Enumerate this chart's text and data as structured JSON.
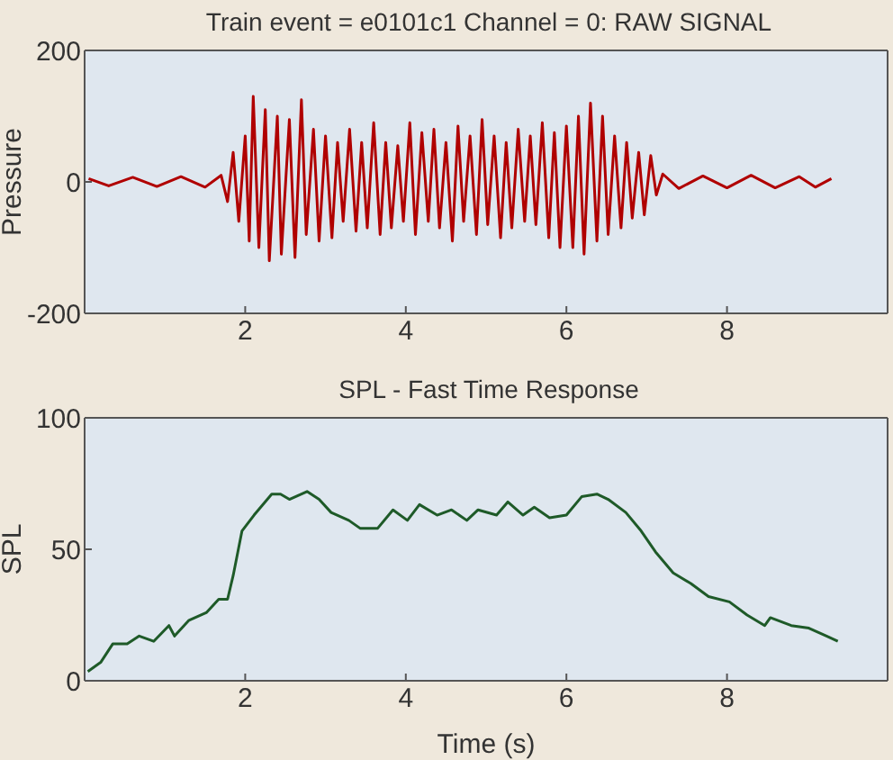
{
  "chart_data": [
    {
      "type": "line",
      "title": "Train event = e0101c1  Channel = 0: RAW SIGNAL",
      "ylabel": "Pressure",
      "xlim": [
        0,
        10
      ],
      "xticks": [
        2,
        4,
        6,
        8
      ],
      "ylim": [
        -200,
        200
      ],
      "yticks": [
        -200,
        0,
        200
      ],
      "series": [
        {
          "color": "#b00000",
          "x": [
            0.05,
            0.3,
            0.6,
            0.9,
            1.2,
            1.5,
            1.7,
            1.78,
            1.85,
            1.92,
            2.0,
            2.05,
            2.1,
            2.17,
            2.25,
            2.3,
            2.4,
            2.45,
            2.55,
            2.62,
            2.7,
            2.76,
            2.85,
            2.92,
            3.0,
            3.08,
            3.15,
            3.22,
            3.3,
            3.38,
            3.45,
            3.52,
            3.6,
            3.68,
            3.75,
            3.82,
            3.9,
            3.97,
            4.05,
            4.12,
            4.2,
            4.28,
            4.35,
            4.42,
            4.5,
            4.58,
            4.65,
            4.72,
            4.8,
            4.88,
            4.95,
            5.02,
            5.1,
            5.18,
            5.25,
            5.32,
            5.4,
            5.48,
            5.55,
            5.62,
            5.7,
            5.78,
            5.85,
            5.92,
            6.0,
            6.08,
            6.15,
            6.22,
            6.3,
            6.38,
            6.45,
            6.52,
            6.6,
            6.68,
            6.75,
            6.82,
            6.9,
            6.97,
            7.05,
            7.12,
            7.2,
            7.4,
            7.7,
            8.0,
            8.3,
            8.6,
            8.9,
            9.1,
            9.3
          ],
          "values": [
            5,
            -6,
            7,
            -7,
            8,
            -8,
            10,
            -30,
            45,
            -60,
            70,
            -90,
            130,
            -100,
            110,
            -120,
            100,
            -110,
            95,
            -115,
            125,
            -80,
            80,
            -90,
            70,
            -85,
            60,
            -60,
            80,
            -75,
            60,
            -70,
            90,
            -80,
            60,
            -70,
            55,
            -60,
            90,
            -80,
            75,
            -60,
            80,
            -70,
            60,
            -90,
            85,
            -60,
            70,
            -80,
            95,
            -65,
            70,
            -85,
            60,
            -70,
            80,
            -60,
            70,
            -65,
            90,
            -85,
            75,
            -100,
            85,
            -100,
            100,
            -110,
            120,
            -90,
            100,
            -80,
            70,
            -70,
            60,
            -55,
            45,
            -50,
            40,
            -20,
            12,
            -10,
            9,
            -9,
            10,
            -9,
            8,
            -8,
            5
          ]
        }
      ]
    },
    {
      "type": "line",
      "title": "SPL - Fast Time Response",
      "xlabel": "Time (s)",
      "ylabel": "SPL",
      "xlim": [
        0,
        10
      ],
      "xticks": [
        2,
        4,
        6,
        8
      ],
      "ylim": [
        0,
        100
      ],
      "yticks": [
        0,
        50,
        100
      ],
      "series": [
        {
          "color": "#1e5a28",
          "x": [
            0.04,
            0.2,
            0.35,
            0.53,
            0.68,
            0.86,
            1.05,
            1.12,
            1.3,
            1.52,
            1.67,
            1.78,
            1.85,
            1.96,
            2.11,
            2.33,
            2.44,
            2.55,
            2.77,
            2.92,
            3.07,
            3.29,
            3.43,
            3.65,
            3.84,
            4.02,
            4.17,
            4.39,
            4.57,
            4.76,
            4.9,
            5.13,
            5.27,
            5.46,
            5.6,
            5.79,
            6.0,
            6.19,
            6.38,
            6.52,
            6.74,
            6.93,
            7.11,
            7.33,
            7.55,
            7.77,
            8.03,
            8.25,
            8.47,
            8.54,
            8.8,
            9.02,
            9.24,
            9.38
          ],
          "values": [
            3.5,
            7,
            14,
            14,
            17,
            15,
            21,
            17,
            23,
            26,
            31,
            31,
            40,
            57,
            63,
            71,
            71,
            69,
            72,
            69,
            64,
            61,
            58,
            58,
            65,
            61,
            67,
            63,
            65,
            61,
            65,
            63,
            68,
            63,
            66,
            62,
            63,
            70,
            71,
            69,
            64,
            57,
            49,
            41,
            37,
            32,
            30,
            25,
            21,
            24,
            21,
            20,
            17,
            15
          ]
        }
      ]
    }
  ]
}
